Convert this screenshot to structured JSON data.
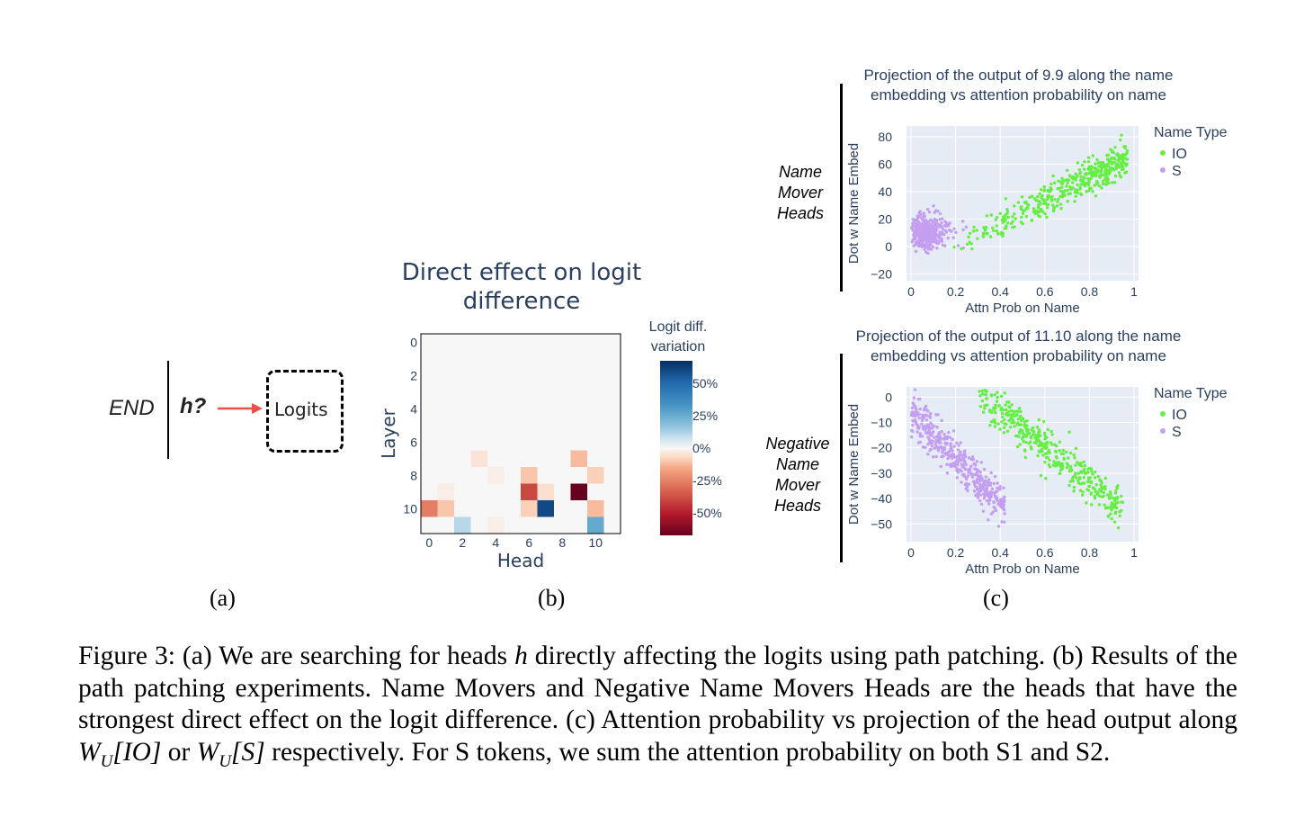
{
  "panel_a": {
    "end_label": "END",
    "head_label": "h?",
    "logits_label": "Logits"
  },
  "panel_b": {
    "title_line1": "Direct effect on logit",
    "title_line2": "difference",
    "colorbar_title_line1": "Logit diff.",
    "colorbar_title_line2": "variation",
    "colorbar_ticks": [
      "50%",
      "25%",
      "0%",
      "-25%",
      "-50%"
    ]
  },
  "panel_c": {
    "top": {
      "row_label": [
        "Name",
        "Mover",
        "Heads"
      ],
      "title_line1": "Projection of the output of 9.9 along the name",
      "title_line2": "embedding vs attention probability on name"
    },
    "bottom": {
      "row_label": [
        "Negative",
        "Name",
        "Mover",
        "Heads"
      ],
      "title_line1": "Projection of the output of 11.10 along the name",
      "title_line2": "embedding vs attention probability on  name"
    }
  },
  "sublabels": [
    "(a)",
    "(b)",
    "(c)"
  ],
  "caption": {
    "part1": "Figure 3: (a) We are searching for heads ",
    "h": "h",
    "part2": " directly affecting the logits using path patching. (b) Results of the path patching experiments. Name Movers and Negative Name Movers Heads are the heads that have the strongest direct effect on the logit difference. (c) Attention probability vs projection of the head output along ",
    "wio": "W",
    "wio_sub": "U",
    "wio_arg": "[IO]",
    "part3": " or ",
    "ws": "W",
    "ws_sub": "U",
    "ws_arg": "[S]",
    "part4": " respectively.  For S tokens, we sum the attention probability on both S1 and S2."
  },
  "colors": {
    "io": "#66ee44",
    "s": "#c49ef0",
    "plot_bg": "#e5ecf6",
    "arrow": "#e8504a",
    "heat_pos": "#2166ac",
    "heat_neg": "#67001f"
  },
  "chart_data": [
    {
      "type": "heatmap",
      "title": "Direct effect on logit difference",
      "xlabel": "Head",
      "ylabel": "Layer",
      "x_ticks": [
        "0",
        "2",
        "4",
        "6",
        "8",
        "10"
      ],
      "y_ticks": [
        "0",
        "2",
        "4",
        "6",
        "8",
        "10"
      ],
      "rows": 12,
      "cols": 12,
      "default_value": 0,
      "colorbar_range": [
        -65,
        65
      ],
      "cells": [
        {
          "layer": 7,
          "head": 3,
          "value": -4
        },
        {
          "layer": 7,
          "head": 9,
          "value": -12
        },
        {
          "layer": 8,
          "head": 6,
          "value": -10
        },
        {
          "layer": 8,
          "head": 10,
          "value": -8
        },
        {
          "layer": 9,
          "head": 6,
          "value": -38
        },
        {
          "layer": 9,
          "head": 7,
          "value": -5
        },
        {
          "layer": 9,
          "head": 9,
          "value": -65
        },
        {
          "layer": 10,
          "head": 0,
          "value": -25
        },
        {
          "layer": 10,
          "head": 1,
          "value": -10
        },
        {
          "layer": 10,
          "head": 6,
          "value": -8
        },
        {
          "layer": 10,
          "head": 7,
          "value": 58
        },
        {
          "layer": 10,
          "head": 10,
          "value": -12
        },
        {
          "layer": 11,
          "head": 2,
          "value": 10
        },
        {
          "layer": 11,
          "head": 10,
          "value": 25
        },
        {
          "layer": 8,
          "head": 4,
          "value": -2
        },
        {
          "layer": 9,
          "head": 1,
          "value": -2
        },
        {
          "layer": 11,
          "head": 4,
          "value": -2
        }
      ]
    },
    {
      "type": "scatter",
      "title": "Projection of the output of 9.9 along the name embedding vs attention probability on name",
      "xlabel": "Attn Prob on Name",
      "ylabel": "Dot w Name Embed",
      "xlim": [
        -0.02,
        1.02
      ],
      "ylim": [
        -25,
        88
      ],
      "x_ticks": [
        "0",
        "0.2",
        "0.4",
        "0.6",
        "0.8",
        "1"
      ],
      "y_ticks": [
        "80",
        "60",
        "40",
        "20",
        "0",
        "−20"
      ],
      "legend_title": "Name Type",
      "legend": "top-right",
      "series": [
        {
          "name": "IO",
          "x_range": [
            0.15,
            0.97
          ],
          "y_line": [
            -5,
            65
          ],
          "noise": 6,
          "count": 420
        },
        {
          "name": "S",
          "x_range": [
            0.0,
            0.25
          ],
          "y_center": 10,
          "noise": 9,
          "count": 420
        }
      ]
    },
    {
      "type": "scatter",
      "title": "Projection of the output of 11.10 along the name embedding vs attention probability on  name",
      "xlabel": "Attn Prob on Name",
      "ylabel": "Dot w Name Embed",
      "xlim": [
        -0.02,
        1.02
      ],
      "ylim": [
        -57,
        4
      ],
      "x_ticks": [
        "0",
        "0.2",
        "0.4",
        "0.6",
        "0.8",
        "1"
      ],
      "y_ticks": [
        "0",
        "−10",
        "−20",
        "−30",
        "−40",
        "−50"
      ],
      "legend_title": "Name Type",
      "legend": "top-right",
      "series": [
        {
          "name": "IO",
          "x_range": [
            0.3,
            0.95
          ],
          "y_line": [
            1,
            -44
          ],
          "noise": 4,
          "count": 420
        },
        {
          "name": "S",
          "x_range": [
            0.0,
            0.42
          ],
          "y_line": [
            -6,
            -44
          ],
          "noise": 4,
          "count": 420
        }
      ]
    }
  ]
}
